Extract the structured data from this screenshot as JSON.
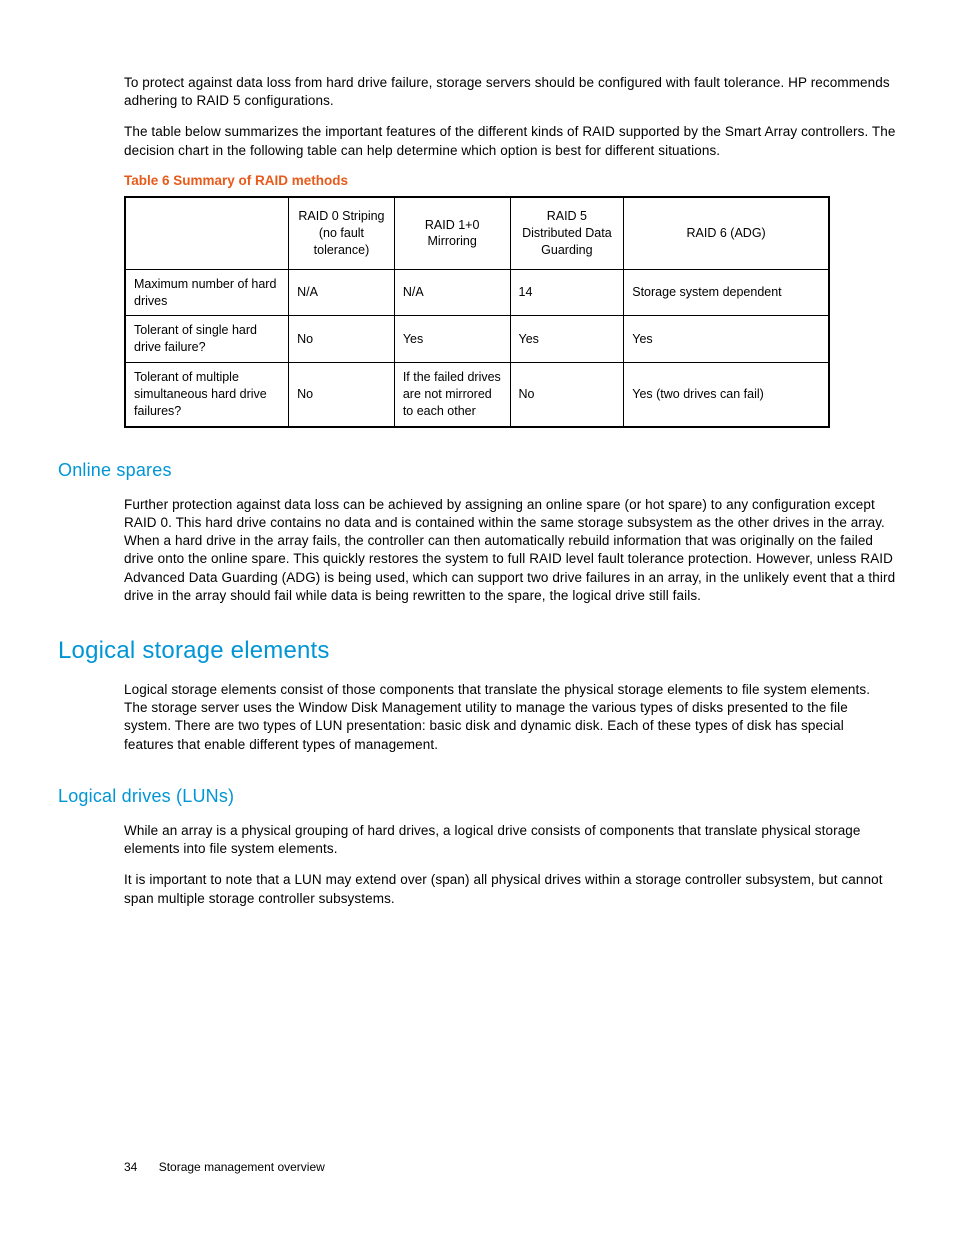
{
  "paragraphs": {
    "p1": "To protect against data loss from hard drive failure, storage servers should be configured with fault tolerance. HP recommends adhering to RAID 5 configurations.",
    "p2": "The table below summarizes the important features of the different kinds of RAID supported by the Smart Array controllers. The decision chart in the following table can help determine which option is best for different situations."
  },
  "table": {
    "caption": "Table 6 Summary of RAID methods",
    "headers": [
      "",
      "RAID 0 Striping (no fault tolerance)",
      "RAID 1+0 Mirroring",
      "RAID 5 Distributed Data Guarding",
      "RAID 6 (ADG)"
    ],
    "rows": [
      [
        "Maximum number of hard drives",
        "N/A",
        "N/A",
        "14",
        "Storage system dependent"
      ],
      [
        "Tolerant of single hard drive failure?",
        "No",
        "Yes",
        "Yes",
        "Yes"
      ],
      [
        "Tolerant of multiple simultaneous hard drive failures?",
        "No",
        "If the failed drives are not mirrored to each other",
        "No",
        "Yes (two drives can fail)"
      ]
    ],
    "col_widths": [
      "164px",
      "106px",
      "116px",
      "114px",
      "206px"
    ]
  },
  "sections": {
    "online_spares": {
      "title": "Online spares",
      "body": "Further protection against data loss can be achieved by assigning an online spare (or hot spare) to any configuration except RAID 0. This hard drive contains no data and is contained within the same storage subsystem as the other drives in the array. When a hard drive in the array fails, the controller can then automatically rebuild information that was originally on the failed drive onto the online spare. This quickly restores the system to full RAID level fault tolerance protection. However, unless RAID Advanced Data Guarding (ADG) is being used, which can support two drive failures in an array, in the unlikely event that a third drive in the array should fail while data is being rewritten to the spare, the logical drive still fails."
    },
    "logical_storage": {
      "title": "Logical storage elements",
      "body": "Logical storage elements consist of those components that translate the physical storage elements to file system elements. The storage server uses the Window Disk Management utility to manage the various types of disks presented to the file system. There are two types of LUN presentation: basic disk and dynamic disk. Each of these types of disk has special features that enable different types of management."
    },
    "logical_drives": {
      "title": "Logical drives (LUNs)",
      "body1": "While an array is a physical grouping of hard drives, a logical drive consists of components that translate physical storage elements into file system elements.",
      "body2": "It is important to note that a LUN may extend over (span) all physical drives within a storage controller subsystem, but cannot span multiple storage controller subsystems."
    }
  },
  "footer": {
    "page_number": "34",
    "section_title": "Storage management overview"
  },
  "colors": {
    "heading_blue": "#0096d6",
    "caption_orange": "#e85a1a",
    "text": "#000000",
    "background": "#ffffff"
  }
}
